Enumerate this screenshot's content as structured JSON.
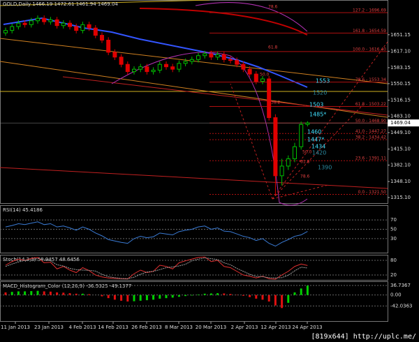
{
  "chart_data": {
    "type": "candlestick",
    "title": "GOLD,Daily 1466.19 1472.61 1461.94 1469.04",
    "open": [
      1655,
      1660,
      1668,
      1675,
      1672,
      1680,
      1685,
      1678,
      1682,
      1670,
      1675,
      1668,
      1660,
      1672,
      1665,
      1650,
      1640,
      1615,
      1605,
      1590,
      1575,
      1580,
      1585,
      1575,
      1578,
      1590,
      1585,
      1580,
      1592,
      1596,
      1600,
      1608,
      1612,
      1605,
      1610,
      1600,
      1598,
      1590,
      1580,
      1570,
      1555,
      1560,
      1480,
      1360,
      1380,
      1395,
      1420,
      1466.19
    ],
    "high": [
      1666,
      1674,
      1681,
      1681,
      1686,
      1691,
      1691,
      1688,
      1688,
      1681,
      1681,
      1674,
      1678,
      1678,
      1671,
      1656,
      1646,
      1621,
      1611,
      1596,
      1586,
      1591,
      1591,
      1584,
      1596,
      1596,
      1591,
      1598,
      1602,
      1606,
      1614,
      1618,
      1618,
      1616,
      1616,
      1606,
      1604,
      1596,
      1586,
      1576,
      1566,
      1566,
      1487,
      1395,
      1402,
      1428,
      1472,
      1472.61
    ],
    "low": [
      1649,
      1654,
      1662,
      1666,
      1666,
      1674,
      1672,
      1672,
      1664,
      1664,
      1662,
      1654,
      1654,
      1659,
      1644,
      1634,
      1609,
      1599,
      1584,
      1569,
      1569,
      1574,
      1569,
      1569,
      1572,
      1579,
      1574,
      1574,
      1586,
      1590,
      1594,
      1602,
      1599,
      1599,
      1594,
      1592,
      1584,
      1574,
      1564,
      1549,
      1549,
      1474,
      1321.5,
      1340,
      1372,
      1388,
      1414,
      1461.94
    ],
    "close": [
      1660,
      1668,
      1675,
      1672,
      1680,
      1685,
      1678,
      1682,
      1670,
      1675,
      1668,
      1660,
      1672,
      1665,
      1650,
      1640,
      1615,
      1605,
      1590,
      1575,
      1580,
      1585,
      1575,
      1578,
      1590,
      1585,
      1580,
      1592,
      1596,
      1600,
      1608,
      1612,
      1605,
      1610,
      1600,
      1598,
      1590,
      1580,
      1570,
      1555,
      1560,
      1480,
      1360,
      1380,
      1395,
      1420,
      1466,
      1469.04
    ],
    "ylim": [
      1305,
      1720
    ],
    "yticks": [
      1651.15,
      {
        "value": 1617.1,
        "label": "1617.10"
      },
      1583.15,
      1550.15,
      1516.15,
      {
        "value": 1483.1,
        "label": "1483.10"
      },
      {
        "value": 1449.1,
        "label": "1449.10"
      },
      {
        "value": 1415.1,
        "label": "1415.10"
      },
      {
        "value": 1382.1,
        "label": "1382.10"
      },
      {
        "value": 1348.1,
        "label": "1348.10"
      },
      {
        "value": 1315.1,
        "label": "1315.10"
      }
    ],
    "last_price": 1469.04,
    "date_labels": [
      "11 Jan 2013",
      "23 Jan 2013",
      "4 Feb 2013",
      "14 Feb 2013",
      "26 Feb 2013",
      "8 Mar 2013",
      "20 Mar 2013",
      "2 Apr 2013",
      "12 Apr 2013",
      "24 Apr 2013"
    ],
    "fib_levels": [
      {
        "label": "127.2 - 1696.69",
        "value": 1696.69
      },
      {
        "label": "161.8 - 1654.59",
        "value": 1654.59
      },
      {
        "label": "100.0 - 1616.40",
        "value": 1616.4
      },
      {
        "label": "78.6 - 1553.34",
        "value": 1553.34
      },
      {
        "label": "61.8 - 1503.22",
        "value": 1503.22
      },
      {
        "label": "50.0 - 1468.90",
        "value": 1468.9
      },
      {
        "label": "41.0 - 1447.27",
        "value": 1447.27
      },
      {
        "label": "38.2 - 1434.42",
        "value": 1434.42
      },
      {
        "label": "23.6 - 1391.11",
        "value": 1391.11
      },
      {
        "label": "0.0 - 1321.50",
        "value": 1321.5
      }
    ],
    "fib_ratios": [
      "78.6",
      "61.8",
      "50.0",
      "38.2",
      "50.0",
      "61.8",
      "78.6"
    ],
    "level_notes": [
      "1553",
      "1520",
      "1503",
      "1485*",
      "1460",
      "1447*",
      "1434",
      "1420",
      "1390"
    ],
    "indicators": [
      {
        "type": "line",
        "title": "RSI(14) 45.4186",
        "ylim": [
          0,
          100
        ],
        "yticks": [
          70,
          50,
          30
        ],
        "series": [
          {
            "color": "#3a7bd5",
            "values": [
              55,
              58,
              62,
              60,
              63,
              66,
              60,
              62,
              55,
              57,
              53,
              48,
              55,
              50,
              42,
              36,
              28,
              25,
              22,
              20,
              30,
              35,
              32,
              34,
              42,
              40,
              38,
              45,
              48,
              50,
              55,
              57,
              50,
              53,
              46,
              45,
              40,
              35,
              32,
              26,
              30,
              20,
              14,
              22,
              28,
              35,
              38,
              45.4186
            ]
          }
        ]
      },
      {
        "type": "line",
        "title": "Stoch(14,3,3) 58.9457 48.6456",
        "ylim": [
          0,
          100
        ],
        "yticks": [
          80,
          20
        ],
        "series": [
          {
            "color": "#e03030",
            "values": [
              60,
              75,
              85,
              80,
              88,
              92,
              70,
              72,
              45,
              55,
              40,
              30,
              50,
              38,
              20,
              12,
              8,
              6,
              5,
              4,
              25,
              40,
              30,
              35,
              60,
              55,
              45,
              70,
              78,
              85,
              92,
              94,
              75,
              80,
              55,
              50,
              35,
              20,
              15,
              8,
              15,
              5,
              3,
              20,
              35,
              55,
              65,
              58.9457
            ]
          },
          {
            "color": "#a0a0a0",
            "values": [
              55,
              65,
              73,
              80,
              84,
              87,
              83,
              78,
              62,
              57,
              47,
              42,
              40,
              39,
              36,
              23,
              13,
              9,
              6,
              5,
              11,
              23,
              32,
              35,
              42,
              50,
              53,
              57,
              64,
              78,
              85,
              90,
              87,
              83,
              70,
              62,
              47,
              35,
              23,
              14,
              13,
              9,
              8,
              9,
              19,
              37,
              52,
              48.6456
            ]
          }
        ]
      },
      {
        "type": "bar",
        "title": "MACD_Histogram_Color (12,26,9) -36.5325 -49.1377",
        "ylim": [
          -100,
          50
        ],
        "yticks": [
          36.7367,
          {
            "value": 0,
            "label": "0.00"
          },
          -42.0363
        ],
        "up_color": "#00d000",
        "down_color": "#e01010",
        "values": [
          10,
          12,
          14,
          14,
          15,
          16,
          14,
          13,
          10,
          9,
          7,
          5,
          5,
          3,
          0,
          -5,
          -12,
          -18,
          -22,
          -25,
          -24,
          -22,
          -20,
          -18,
          -14,
          -12,
          -10,
          -7,
          -4,
          -2,
          2,
          5,
          6,
          7,
          6,
          4,
          1,
          -3,
          -8,
          -14,
          -18,
          -25,
          -40,
          -50,
          -30,
          10,
          25,
          36
        ]
      }
    ],
    "up_color": "#00c000",
    "down_color": "#e00000"
  },
  "footer": "[819x644] http://uplc.me/"
}
